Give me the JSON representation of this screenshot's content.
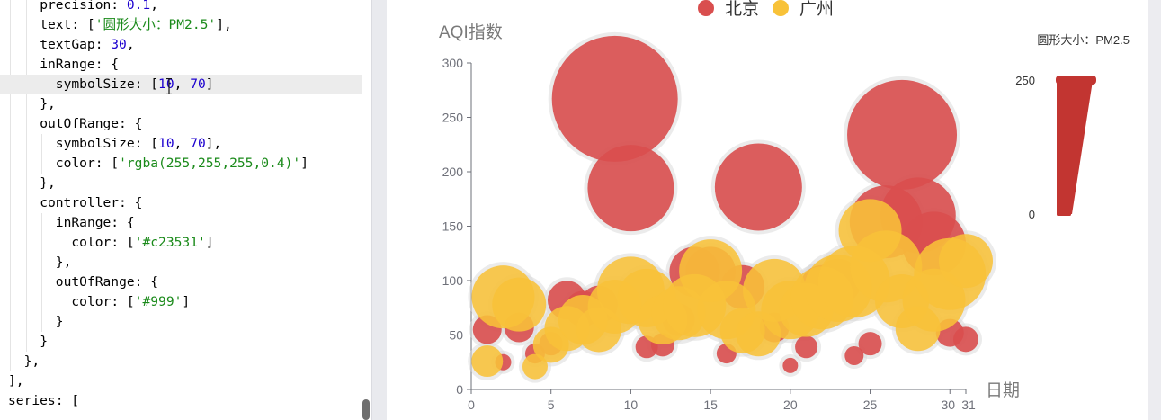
{
  "editor": {
    "current_line": 4,
    "lines": [
      {
        "indent": 4,
        "parts": [
          [
            "p",
            "precision: "
          ],
          [
            "n",
            "0.1"
          ],
          [
            "p",
            ","
          ]
        ]
      },
      {
        "indent": 4,
        "parts": [
          [
            "p",
            "text: ["
          ],
          [
            "s",
            "'圆形大小：PM2.5'"
          ],
          [
            "p",
            "],"
          ]
        ]
      },
      {
        "indent": 4,
        "parts": [
          [
            "p",
            "textGap: "
          ],
          [
            "n",
            "30"
          ],
          [
            "p",
            ","
          ]
        ]
      },
      {
        "indent": 4,
        "parts": [
          [
            "p",
            "inRange: {"
          ]
        ]
      },
      {
        "indent": 6,
        "parts": [
          [
            "p",
            "symbolSize: ["
          ],
          [
            "n",
            "10"
          ],
          [
            "p",
            ", "
          ],
          [
            "n",
            "70"
          ],
          [
            "p",
            "]"
          ]
        ]
      },
      {
        "indent": 4,
        "parts": [
          [
            "p",
            "},"
          ]
        ]
      },
      {
        "indent": 4,
        "parts": [
          [
            "p",
            "outOfRange: {"
          ]
        ]
      },
      {
        "indent": 6,
        "parts": [
          [
            "p",
            "symbolSize: ["
          ],
          [
            "n",
            "10"
          ],
          [
            "p",
            ", "
          ],
          [
            "n",
            "70"
          ],
          [
            "p",
            "],"
          ]
        ]
      },
      {
        "indent": 6,
        "parts": [
          [
            "p",
            "color: ["
          ],
          [
            "s",
            "'rgba(255,255,255,0.4)'"
          ],
          [
            "p",
            "]"
          ]
        ]
      },
      {
        "indent": 4,
        "parts": [
          [
            "p",
            "},"
          ]
        ]
      },
      {
        "indent": 4,
        "parts": [
          [
            "p",
            "controller: {"
          ]
        ]
      },
      {
        "indent": 6,
        "parts": [
          [
            "p",
            "inRange: {"
          ]
        ]
      },
      {
        "indent": 8,
        "parts": [
          [
            "p",
            "color: ["
          ],
          [
            "s",
            "'#c23531'"
          ],
          [
            "p",
            "]"
          ]
        ]
      },
      {
        "indent": 6,
        "parts": [
          [
            "p",
            "},"
          ]
        ]
      },
      {
        "indent": 6,
        "parts": [
          [
            "p",
            "outOfRange: {"
          ]
        ]
      },
      {
        "indent": 8,
        "parts": [
          [
            "p",
            "color: ["
          ],
          [
            "s",
            "'#999'"
          ],
          [
            "p",
            "]"
          ]
        ]
      },
      {
        "indent": 6,
        "parts": [
          [
            "p",
            "}"
          ]
        ]
      },
      {
        "indent": 4,
        "parts": [
          [
            "p",
            "}"
          ]
        ]
      },
      {
        "indent": 2,
        "parts": [
          [
            "p",
            "},"
          ]
        ]
      },
      {
        "indent": 0,
        "parts": [
          [
            "p",
            "],"
          ]
        ]
      },
      {
        "indent": 0,
        "parts": [
          [
            "p",
            "series: ["
          ]
        ]
      }
    ]
  },
  "chart_data": {
    "type": "scatter",
    "ylabel": "AQI指数",
    "xlabel": "日期",
    "xlim": [
      0,
      31
    ],
    "ylim": [
      0,
      300
    ],
    "x_ticks": [
      0,
      5,
      10,
      15,
      20,
      25,
      30,
      31
    ],
    "y_ticks": [
      0,
      50,
      100,
      150,
      200,
      250,
      300
    ],
    "legend_position": "top-center",
    "series": [
      {
        "name": "北京",
        "color": "#d94e4e",
        "points": [
          [
            1,
            55,
            32
          ],
          [
            2,
            25,
            18
          ],
          [
            3,
            57,
            33
          ],
          [
            4,
            33,
            22
          ],
          [
            5,
            42,
            26
          ],
          [
            6,
            82,
            43
          ],
          [
            7,
            74,
            40
          ],
          [
            8,
            78,
            42
          ],
          [
            9,
            267,
            140
          ],
          [
            10,
            185,
            96
          ],
          [
            11,
            39,
            25
          ],
          [
            12,
            41,
            26
          ],
          [
            13,
            64,
            36
          ],
          [
            14,
            108,
            56
          ],
          [
            15,
            108,
            56
          ],
          [
            16,
            33,
            22
          ],
          [
            17,
            94,
            49
          ],
          [
            18,
            186,
            97
          ],
          [
            19,
            57,
            33
          ],
          [
            20,
            22,
            17
          ],
          [
            21,
            39,
            25
          ],
          [
            22,
            94,
            49
          ],
          [
            23,
            99,
            51
          ],
          [
            24,
            31,
            21
          ],
          [
            25,
            42,
            26
          ],
          [
            26,
            154,
            81
          ],
          [
            27,
            234,
            122
          ],
          [
            28,
            160,
            84
          ],
          [
            29,
            134,
            71
          ],
          [
            30,
            52,
            31
          ],
          [
            31,
            46,
            28
          ]
        ]
      },
      {
        "name": "广州",
        "color": "#f8c239",
        "points": [
          [
            1,
            26,
            35
          ],
          [
            2,
            85,
            70
          ],
          [
            3,
            78,
            60
          ],
          [
            4,
            21,
            28
          ],
          [
            5,
            41,
            40
          ],
          [
            6,
            56,
            50
          ],
          [
            7,
            64,
            55
          ],
          [
            8,
            55,
            50
          ],
          [
            9,
            76,
            60
          ],
          [
            10,
            91,
            75
          ],
          [
            11,
            84,
            65
          ],
          [
            12,
            64,
            55
          ],
          [
            13,
            70,
            60
          ],
          [
            14,
            77,
            70
          ],
          [
            15,
            109,
            70
          ],
          [
            16,
            73,
            65
          ],
          [
            17,
            54,
            50
          ],
          [
            18,
            51,
            50
          ],
          [
            19,
            91,
            70
          ],
          [
            20,
            73,
            65
          ],
          [
            21,
            73,
            60
          ],
          [
            22,
            84,
            70
          ],
          [
            23,
            93,
            75
          ],
          [
            24,
            99,
            80
          ],
          [
            25,
            146,
            70
          ],
          [
            26,
            113,
            80
          ],
          [
            27,
            81,
            60
          ],
          [
            28,
            56,
            50
          ],
          [
            29,
            82,
            70
          ],
          [
            30,
            106,
            80
          ],
          [
            31,
            118,
            60
          ]
        ]
      }
    ],
    "visual_map": {
      "text": "圆形大小：PM2.5",
      "max_label": "250",
      "min_label": "0",
      "color": "#c23531"
    }
  }
}
